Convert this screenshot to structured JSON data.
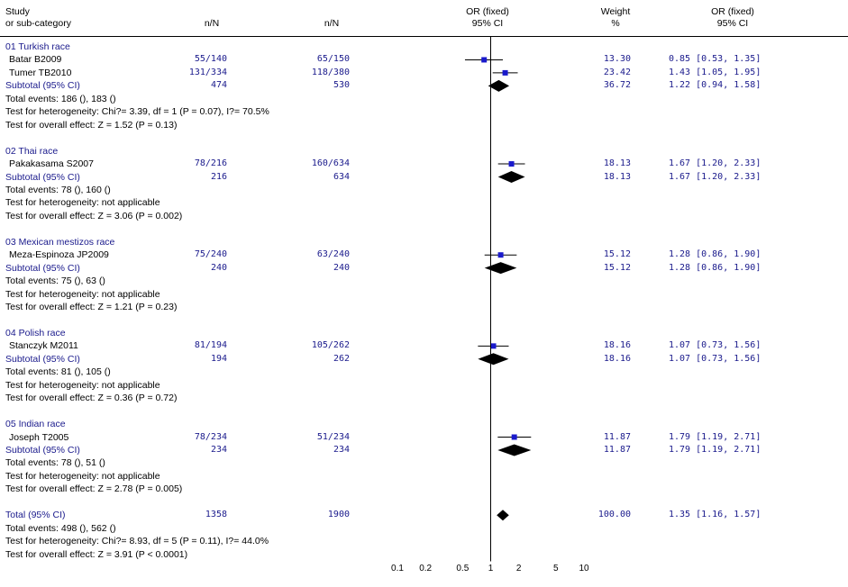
{
  "headers": {
    "study": "Study",
    "subcat": "or sub-category",
    "nN1": "n/N",
    "nN2": "n/N",
    "or_title": "OR (fixed)",
    "ci_title": "95% CI",
    "weight_title": "Weight",
    "weight_unit": "%",
    "or2_title": "OR (fixed)",
    "ci2_title": "95% CI"
  },
  "rows": [
    {
      "type": "group",
      "text": "01 Turkish race"
    },
    {
      "type": "study",
      "name": "Batar B2009",
      "n1": "55/140",
      "n2": "65/150",
      "weight": "13.30",
      "orci": "0.85 [0.53, 1.35]"
    },
    {
      "type": "study",
      "name": "Tumer TB2010",
      "n1": "131/334",
      "n2": "118/380",
      "weight": "23.42",
      "orci": "1.43 [1.05, 1.95]"
    },
    {
      "type": "subtotal",
      "name": "Subtotal (95% CI)",
      "n1": "474",
      "n2": "530",
      "weight": "36.72",
      "orci": "1.22 [0.94, 1.58]"
    },
    {
      "type": "info",
      "text": "Total events: 186 (), 183 ()"
    },
    {
      "type": "info",
      "text": "Test for heterogeneity: Chi?= 3.39, df = 1 (P = 0.07), I?= 70.5%"
    },
    {
      "type": "info",
      "text": "Test for overall effect: Z = 1.52 (P = 0.13)"
    },
    {
      "type": "blank"
    },
    {
      "type": "group",
      "text": "02 Thai race"
    },
    {
      "type": "study",
      "name": "Pakakasama S2007",
      "n1": "78/216",
      "n2": "160/634",
      "weight": "18.13",
      "orci": "1.67 [1.20, 2.33]"
    },
    {
      "type": "subtotal",
      "name": "Subtotal (95% CI)",
      "n1": "216",
      "n2": "634",
      "weight": "18.13",
      "orci": "1.67 [1.20, 2.33]"
    },
    {
      "type": "info",
      "text": "Total events: 78 (), 160 ()"
    },
    {
      "type": "info",
      "text": "Test for heterogeneity: not applicable"
    },
    {
      "type": "info",
      "text": "Test for overall effect: Z = 3.06 (P = 0.002)"
    },
    {
      "type": "blank"
    },
    {
      "type": "group",
      "text": "03 Mexican mestizos race"
    },
    {
      "type": "study",
      "name": "Meza-Espinoza JP2009",
      "n1": "75/240",
      "n2": "63/240",
      "weight": "15.12",
      "orci": "1.28 [0.86, 1.90]"
    },
    {
      "type": "subtotal",
      "name": "Subtotal (95% CI)",
      "n1": "240",
      "n2": "240",
      "weight": "15.12",
      "orci": "1.28 [0.86, 1.90]"
    },
    {
      "type": "info",
      "text": "Total events: 75 (), 63 ()"
    },
    {
      "type": "info",
      "text": "Test for heterogeneity: not applicable"
    },
    {
      "type": "info",
      "text": "Test for overall effect: Z = 1.21 (P = 0.23)"
    },
    {
      "type": "blank"
    },
    {
      "type": "group",
      "text": "04 Polish race"
    },
    {
      "type": "study",
      "name": "Stanczyk M2011",
      "n1": "81/194",
      "n2": "105/262",
      "weight": "18.16",
      "orci": "1.07 [0.73, 1.56]"
    },
    {
      "type": "subtotal",
      "name": "Subtotal (95% CI)",
      "n1": "194",
      "n2": "262",
      "weight": "18.16",
      "orci": "1.07 [0.73, 1.56]"
    },
    {
      "type": "info",
      "text": "Total events: 81 (), 105 ()"
    },
    {
      "type": "info",
      "text": "Test for heterogeneity: not applicable"
    },
    {
      "type": "info",
      "text": "Test for overall effect: Z = 0.36 (P = 0.72)"
    },
    {
      "type": "blank"
    },
    {
      "type": "group",
      "text": "05 Indian race"
    },
    {
      "type": "study",
      "name": "Joseph T2005",
      "n1": "78/234",
      "n2": "51/234",
      "weight": "11.87",
      "orci": "1.79 [1.19, 2.71]"
    },
    {
      "type": "subtotal",
      "name": "Subtotal (95% CI)",
      "n1": "234",
      "n2": "234",
      "weight": "11.87",
      "orci": "1.79 [1.19, 2.71]"
    },
    {
      "type": "info",
      "text": "Total events: 78 (), 51 ()"
    },
    {
      "type": "info",
      "text": "Test for heterogeneity: not applicable"
    },
    {
      "type": "info",
      "text": "Test for overall effect: Z = 2.78 (P = 0.005)"
    },
    {
      "type": "blank"
    },
    {
      "type": "total",
      "name": "Total (95% CI)",
      "n1": "1358",
      "n2": "1900",
      "weight": "100.00",
      "orci": "1.35 [1.16, 1.57]"
    },
    {
      "type": "info",
      "text": "Total events: 498 (), 562 ()"
    },
    {
      "type": "info",
      "text": "Test for heterogeneity: Chi?= 8.93, df = 5 (P = 0.11), I?= 44.0%"
    },
    {
      "type": "info",
      "text": "Test for overall effect: Z = 3.91 (P < 0.0001)"
    }
  ],
  "chart_data": {
    "type": "forest",
    "x_scale": "log",
    "xlim": [
      0.1,
      10
    ],
    "reference_line": 1,
    "x_ticks": [
      0.1,
      0.2,
      0.5,
      1,
      2,
      5,
      10
    ],
    "x_tick_labels": [
      "0.1",
      "0.2",
      "0.5",
      "1",
      "2",
      "5",
      "10"
    ],
    "studies": [
      {
        "name": "Batar B2009",
        "or": 0.85,
        "lo": 0.53,
        "hi": 1.35,
        "weight": 13.3
      },
      {
        "name": "Tumer TB2010",
        "or": 1.43,
        "lo": 1.05,
        "hi": 1.95,
        "weight": 23.42
      },
      {
        "name": "Pakakasama S2007",
        "or": 1.67,
        "lo": 1.2,
        "hi": 2.33,
        "weight": 18.13
      },
      {
        "name": "Meza-Espinoza JP2009",
        "or": 1.28,
        "lo": 0.86,
        "hi": 1.9,
        "weight": 15.12
      },
      {
        "name": "Stanczyk M2011",
        "or": 1.07,
        "lo": 0.73,
        "hi": 1.56,
        "weight": 18.16
      },
      {
        "name": "Joseph T2005",
        "or": 1.79,
        "lo": 1.19,
        "hi": 2.71,
        "weight": 11.87
      }
    ],
    "subtotals": [
      {
        "name": "Subtotal (95% CI)",
        "or": 1.22,
        "lo": 0.94,
        "hi": 1.58
      },
      {
        "name": "Subtotal (95% CI)",
        "or": 1.67,
        "lo": 1.2,
        "hi": 2.33
      },
      {
        "name": "Subtotal (95% CI)",
        "or": 1.28,
        "lo": 0.86,
        "hi": 1.9
      },
      {
        "name": "Subtotal (95% CI)",
        "or": 1.07,
        "lo": 0.73,
        "hi": 1.56
      },
      {
        "name": "Subtotal (95% CI)",
        "or": 1.79,
        "lo": 1.19,
        "hi": 2.71
      }
    ],
    "total": {
      "name": "Total (95% CI)",
      "or": 1.35,
      "lo": 1.16,
      "hi": 1.57
    },
    "colors": {
      "marker": "#1a1acc",
      "diamond": "#000000",
      "text_blue": "#1a1a8c"
    }
  }
}
